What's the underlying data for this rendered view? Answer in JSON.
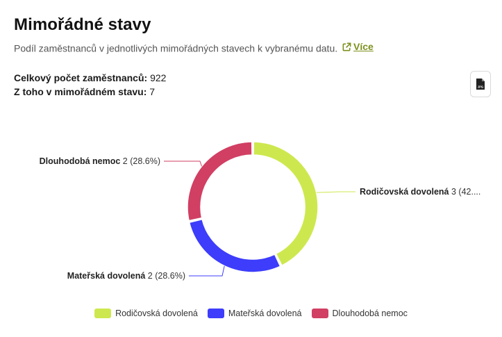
{
  "header": {
    "title": "Mimořádné stavy",
    "subtitle": "Podíl zaměstnanců v jednotlivých mimořádných stavech k vybranému datu.",
    "more_label": "Více"
  },
  "stats": {
    "total_label": "Celkový počet zaměstnanců:",
    "total_value": "922",
    "special_label": "Z toho v mimořádném stavu:",
    "special_value": "7"
  },
  "export": {
    "icon": "jpg-file-icon",
    "label": "JPG"
  },
  "chart_data": {
    "type": "pie",
    "donut": true,
    "categories": [
      "Rodičovská dovolená",
      "Mateřská dovolená",
      "Dlouhodobá nemoc"
    ],
    "values": [
      3,
      2,
      2
    ],
    "labels": [
      "Rodičovská dovolená",
      "Mateřská dovolená",
      "Dlouhodobá nemoc"
    ],
    "label_values": [
      "3 (42....",
      "2 (28.6%)",
      "2 (28.6%)"
    ],
    "colors": [
      "#cde84e",
      "#3d3dfb",
      "#d13f63"
    ],
    "legend_position": "bottom"
  }
}
